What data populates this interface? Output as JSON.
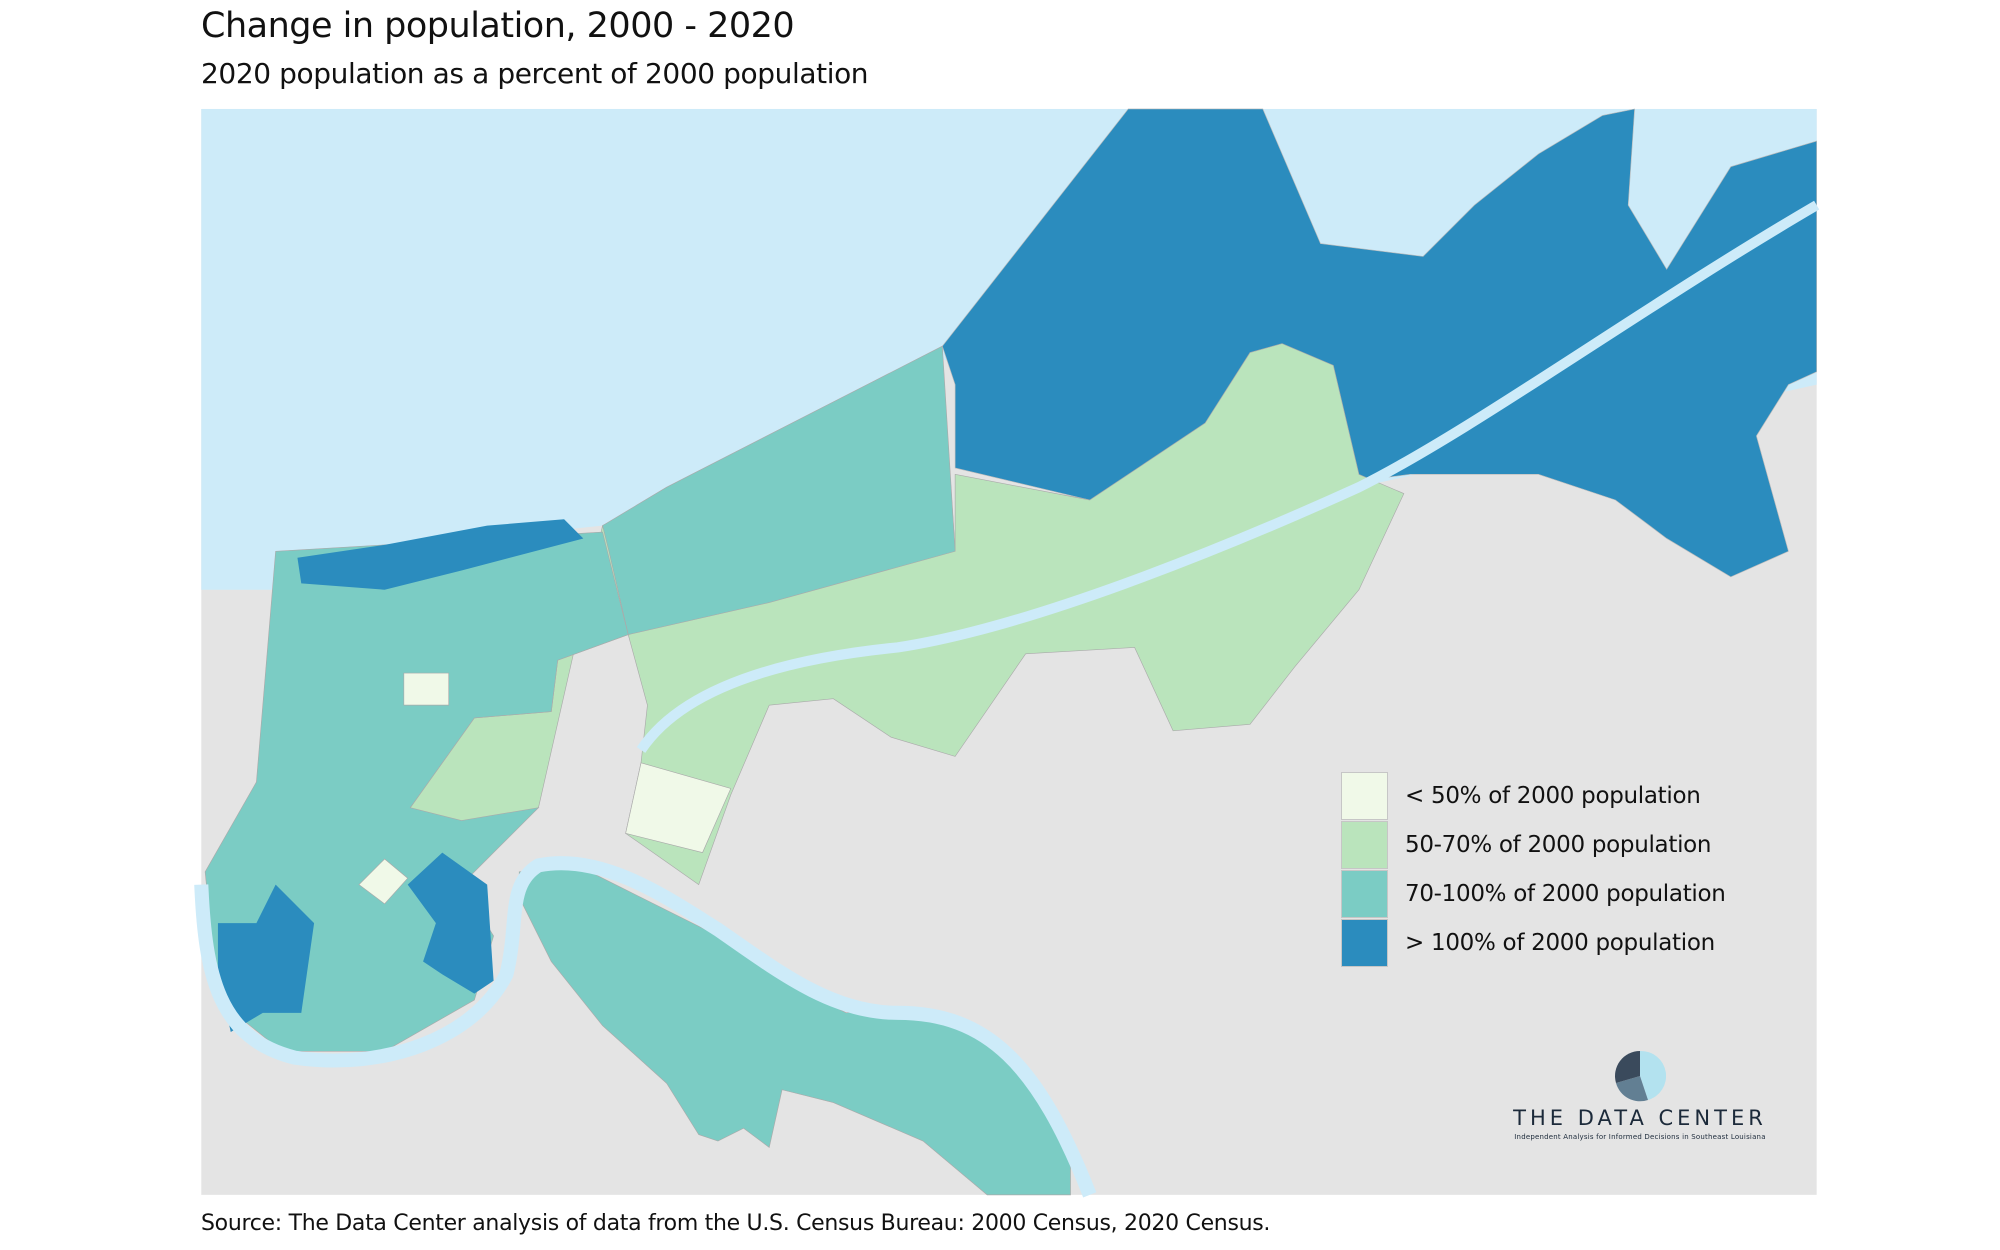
{
  "header": {
    "title": "Change in population, 2000 - 2020",
    "subtitle": "2020 population as a percent of 2000 population"
  },
  "legend": {
    "items": [
      {
        "label": "< 50% of 2000 population",
        "color": "#f0f9e8"
      },
      {
        "label": "50-70% of 2000 population",
        "color": "#bae4bc"
      },
      {
        "label": "70-100% of 2000 population",
        "color": "#7bccc4"
      },
      {
        "label": "> 100% of 2000 population",
        "color": "#2b8cbe"
      }
    ]
  },
  "logo": {
    "name": "THE DATA CENTER",
    "tagline": "Independent Analysis for Informed Decisions in Southeast Louisiana"
  },
  "footer": {
    "source": "Source: The Data Center analysis of data from the U.S. Census Bureau: 2000 Census, 2020 Census."
  },
  "colors": {
    "water": "#cdebf9",
    "land": "#e4e4e4"
  }
}
